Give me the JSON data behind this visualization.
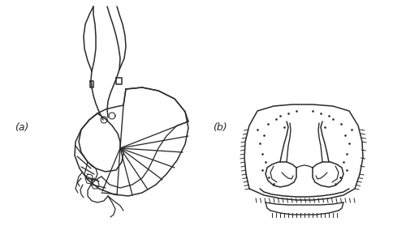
{
  "fig_width": 5.0,
  "fig_height": 3.05,
  "dpi": 100,
  "bg_color": "#ffffff",
  "line_color": "#2a2a2a",
  "lw": 1.1,
  "label_a": "(a)",
  "label_b": "(b)",
  "label_fontsize": 9
}
